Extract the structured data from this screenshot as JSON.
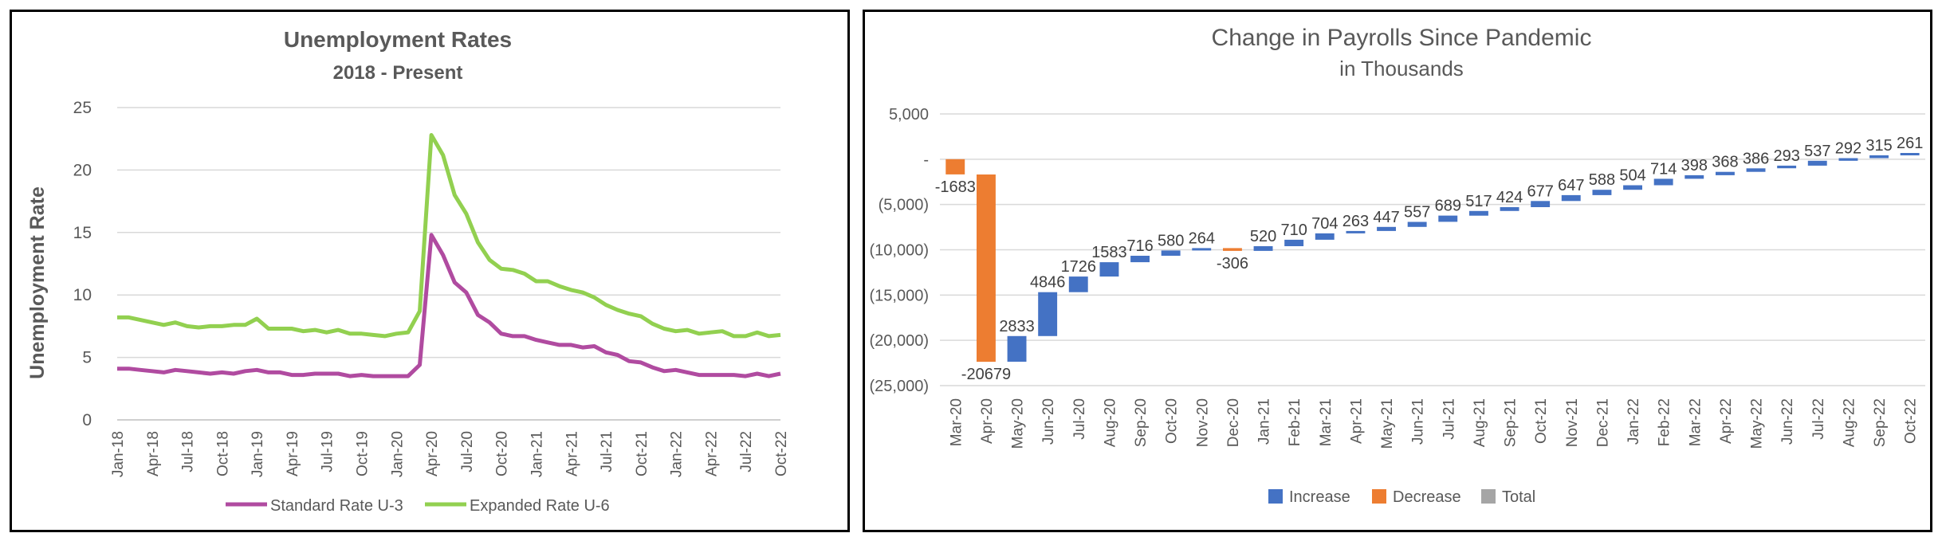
{
  "chart_data": [
    {
      "type": "line",
      "title": "Unemployment Rates",
      "subtitle": "2018 - Present",
      "xlabel": "",
      "ylabel": "Unemployment Rate",
      "ylim": [
        0,
        25
      ],
      "yticks": [
        "0",
        "5",
        "10",
        "15",
        "20",
        "25"
      ],
      "xtick_labels": [
        "Jan-18",
        "Apr-18",
        "Jul-18",
        "Oct-18",
        "Jan-19",
        "Apr-19",
        "Jul-19",
        "Oct-19",
        "Jan-20",
        "Apr-20",
        "Jul-20",
        "Oct-20",
        "Jan-21",
        "Apr-21",
        "Jul-21",
        "Oct-21",
        "Jan-22",
        "Apr-22",
        "Jul-22",
        "Oct-22"
      ],
      "grid": true,
      "legend_position": "bottom",
      "series": [
        {
          "name": "Standard Rate U-3",
          "color": "#B04BA0",
          "values": [
            4.1,
            4.1,
            4.0,
            3.9,
            3.8,
            4.0,
            3.9,
            3.8,
            3.7,
            3.8,
            3.7,
            3.9,
            4.0,
            3.8,
            3.8,
            3.6,
            3.6,
            3.7,
            3.7,
            3.7,
            3.5,
            3.6,
            3.5,
            3.5,
            3.5,
            3.5,
            4.4,
            14.8,
            13.2,
            11.0,
            10.2,
            8.4,
            7.8,
            6.9,
            6.7,
            6.7,
            6.4,
            6.2,
            6.0,
            6.0,
            5.8,
            5.9,
            5.4,
            5.2,
            4.7,
            4.6,
            4.2,
            3.9,
            4.0,
            3.8,
            3.6,
            3.6,
            3.6,
            3.6,
            3.5,
            3.7,
            3.5,
            3.7
          ]
        },
        {
          "name": "Expanded Rate U-6",
          "color": "#92D050",
          "values": [
            8.2,
            8.2,
            8.0,
            7.8,
            7.6,
            7.8,
            7.5,
            7.4,
            7.5,
            7.5,
            7.6,
            7.6,
            8.1,
            7.3,
            7.3,
            7.3,
            7.1,
            7.2,
            7.0,
            7.2,
            6.9,
            6.9,
            6.8,
            6.7,
            6.9,
            7.0,
            8.7,
            22.8,
            21.2,
            18.0,
            16.5,
            14.2,
            12.8,
            12.1,
            12.0,
            11.7,
            11.1,
            11.1,
            10.7,
            10.4,
            10.2,
            9.8,
            9.2,
            8.8,
            8.5,
            8.3,
            7.7,
            7.3,
            7.1,
            7.2,
            6.9,
            7.0,
            7.1,
            6.7,
            6.7,
            7.0,
            6.7,
            6.8
          ]
        }
      ]
    },
    {
      "type": "waterfall",
      "title": "Change in Payrolls Since Pandemic",
      "subtitle": "in Thousands",
      "xlabel": "",
      "ylabel": "",
      "ylim": [
        -25000,
        5000
      ],
      "yticks": [
        "5,000",
        "-",
        "(5,000)",
        "(10,000)",
        "(15,000)",
        "(20,000)",
        "(25,000)"
      ],
      "grid": true,
      "legend_position": "bottom",
      "legend": [
        {
          "name": "Increase",
          "color": "#4472C4"
        },
        {
          "name": "Decrease",
          "color": "#ED7D31"
        },
        {
          "name": "Total",
          "color": "#A5A5A5"
        }
      ],
      "categories": [
        "Mar-20",
        "Apr-20",
        "May-20",
        "Jun-20",
        "Jul-20",
        "Aug-20",
        "Sep-20",
        "Oct-20",
        "Nov-20",
        "Dec-20",
        "Jan-21",
        "Feb-21",
        "Mar-21",
        "Apr-21",
        "May-21",
        "Jun-21",
        "Jul-21",
        "Aug-21",
        "Sep-21",
        "Oct-21",
        "Nov-21",
        "Dec-21",
        "Jan-22",
        "Feb-22",
        "Mar-22",
        "Apr-22",
        "May-22",
        "Jun-22",
        "Jul-22",
        "Aug-22",
        "Sep-22",
        "Oct-22"
      ],
      "values": [
        -1683,
        -20679,
        2833,
        4846,
        1726,
        1583,
        716,
        580,
        264,
        -306,
        520,
        710,
        704,
        263,
        447,
        557,
        689,
        517,
        424,
        677,
        647,
        588,
        504,
        714,
        398,
        368,
        386,
        293,
        537,
        292,
        315,
        261
      ],
      "labels": [
        "-1683",
        "-20679",
        "2833",
        "4846",
        "1726",
        "1583",
        "716",
        "580",
        "264",
        "-306",
        "520",
        "710",
        "704",
        "263",
        "447",
        "557",
        "689",
        "517",
        "424",
        "677",
        "647",
        "588",
        "504",
        "714",
        "398",
        "368",
        "386",
        "293",
        "537",
        "292",
        "315",
        "261"
      ]
    }
  ]
}
